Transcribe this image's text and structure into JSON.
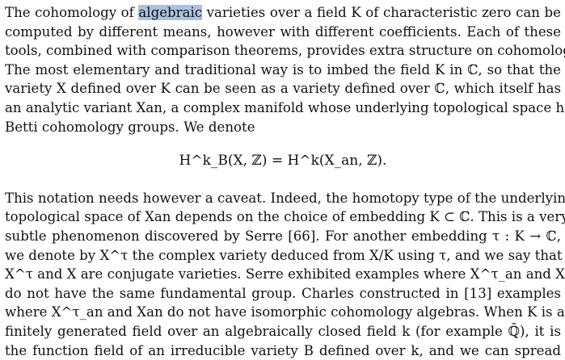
{
  "paragraph1": {
    "l1a": "The cohomology of ",
    "highlight": "algebraic",
    "l1b": " varieties over a field K of characteristic zero can be",
    "l2": "computed by different means, however with different coefficients. Each of these",
    "l3": "tools, combined with comparison theorems, provides extra structure on cohomology.",
    "l4": "The most elementary and traditional way is to imbed the field K in ℂ, so that the",
    "l5": "variety X defined over K can be seen as a variety defined over ℂ, which itself has",
    "l6": "an analytic variant Xan, a complex manifold whose underlying topological space has",
    "l7": "Betti cohomology groups. We denote"
  },
  "equation": "H^k_B(X, ℤ) = H^k(X_an, ℤ).",
  "paragraph2": {
    "l1": "This notation needs however a caveat. Indeed, the homotopy type of the underlying",
    "l2": "topological space of Xan depends on the choice of embedding K ⊂ ℂ. This is a very",
    "l3": "subtle phenomenon discovered by Serre [66]. For another embedding τ : K → ℂ,",
    "l4": "we denote by X^τ the complex variety deduced from X/K using τ, and we say that",
    "l5": "X^τ and X are conjugate varieties. Serre exhibited examples where X^τ_an and Xan",
    "l6": "do not have the same fundamental group. Charles constructed in [13] examples",
    "l7": "where X^τ_an and Xan do not have isomorphic cohomology algebras. When K is a",
    "l8": "finitely generated field over an algebraically closed field k (for example ℚ̄), it is",
    "l9": "the function field of an irreducible variety B defined over k, and we can spread"
  }
}
